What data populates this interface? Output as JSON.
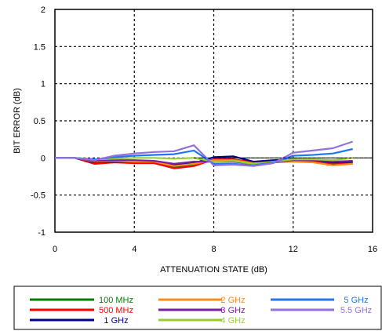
{
  "chart_data": {
    "type": "line",
    "title": "",
    "xlabel": "ATTENUATION STATE (dB)",
    "ylabel": "BIT ERROR (dB)",
    "xlim": [
      0,
      16
    ],
    "ylim": [
      -1,
      2
    ],
    "x_ticks": [
      "0",
      "4",
      "8",
      "12",
      "16"
    ],
    "y_ticks": [
      "2",
      "1.5",
      "1",
      "0.5",
      "0",
      "-0.5",
      "-1"
    ],
    "grid": true,
    "legend_placement": "bottom",
    "x": [
      0,
      1,
      2,
      3,
      4,
      5,
      6,
      7,
      8,
      9,
      10,
      11,
      12,
      13,
      14,
      15
    ],
    "series": [
      {
        "name": "100 MHz",
        "color": "#008000",
        "values": [
          0,
          0,
          -0.07,
          -0.05,
          -0.06,
          -0.06,
          -0.12,
          -0.09,
          -0.02,
          -0.02,
          -0.06,
          -0.04,
          -0.03,
          -0.04,
          -0.07,
          -0.05
        ]
      },
      {
        "name": "500 MHz",
        "color": "#ff0000",
        "values": [
          0,
          0,
          -0.08,
          -0.06,
          -0.07,
          -0.07,
          -0.14,
          -0.11,
          -0.02,
          -0.02,
          -0.06,
          -0.05,
          -0.04,
          -0.05,
          -0.09,
          -0.07
        ]
      },
      {
        "name": "1 GHz",
        "color": "#00008b",
        "values": [
          0,
          0,
          -0.06,
          -0.05,
          -0.05,
          -0.05,
          -0.1,
          -0.07,
          0.01,
          0.02,
          -0.05,
          -0.03,
          -0.02,
          -0.03,
          -0.06,
          -0.05
        ]
      },
      {
        "name": "2 GHz",
        "color": "#ff8c1a",
        "values": [
          0,
          0,
          -0.05,
          -0.04,
          -0.05,
          -0.05,
          -0.11,
          -0.08,
          -0.03,
          -0.03,
          -0.07,
          -0.06,
          -0.05,
          -0.06,
          -0.1,
          -0.08
        ]
      },
      {
        "name": "3 GHz",
        "color": "#7b1fa2",
        "values": [
          0,
          0,
          -0.04,
          -0.03,
          -0.03,
          -0.04,
          -0.08,
          -0.05,
          -0.05,
          -0.05,
          -0.08,
          -0.06,
          -0.03,
          -0.03,
          -0.05,
          -0.04
        ]
      },
      {
        "name": "4 GHz",
        "color": "#9acd32",
        "values": [
          0,
          0,
          -0.02,
          -0.01,
          0,
          0,
          -0.01,
          0,
          -0.05,
          -0.04,
          -0.08,
          -0.05,
          -0.02,
          -0.02,
          -0.03,
          0
        ]
      },
      {
        "name": "5 GHz",
        "color": "#2277ee",
        "values": [
          0,
          0,
          -0.02,
          0.01,
          0.03,
          0.04,
          0.05,
          0.1,
          -0.08,
          -0.08,
          -0.1,
          -0.06,
          0.03,
          0.04,
          0.06,
          0.12
        ]
      },
      {
        "name": "5.5 GHz",
        "color": "#9370db",
        "values": [
          0,
          0,
          -0.03,
          0.03,
          0.06,
          0.08,
          0.09,
          0.17,
          -0.1,
          -0.09,
          -0.11,
          -0.07,
          0.07,
          0.1,
          0.13,
          0.22
        ]
      }
    ]
  }
}
